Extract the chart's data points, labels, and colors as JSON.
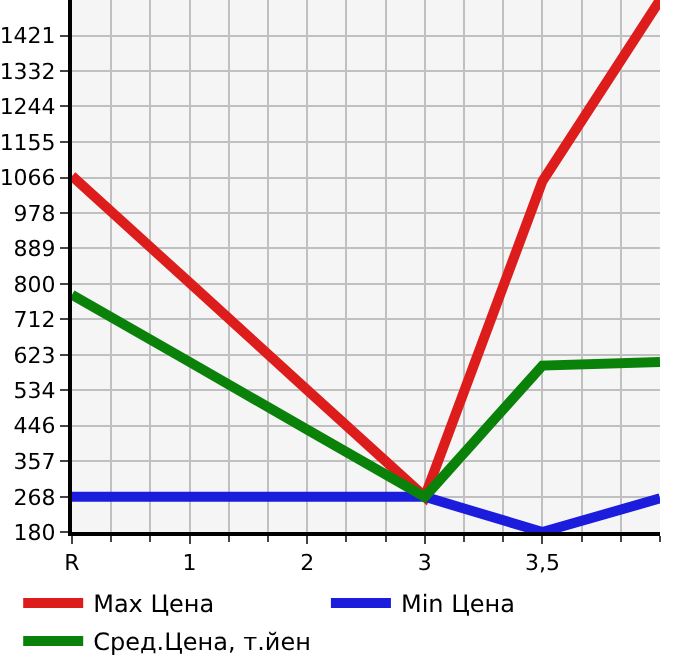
{
  "chart_data": {
    "type": "line",
    "categories": [
      "R",
      "1",
      "2",
      "3",
      "3,5",
      null
    ],
    "series": [
      {
        "name": "Max Цена",
        "color": "#dd1c1c",
        "values": [
          1070,
          803,
          535,
          268,
          1057,
          1510
        ]
      },
      {
        "name": "Min Цена",
        "color": "#1c1cdd",
        "values": [
          268,
          268,
          268,
          268,
          180,
          264
        ]
      },
      {
        "name": "Сред.Цена, т.йен",
        "color": "#0a820a",
        "values": [
          773,
          605,
          436,
          268,
          596,
          605
        ]
      }
    ],
    "ylim": [
      180,
      1510
    ],
    "yticks": [
      180,
      268,
      357,
      446,
      534,
      623,
      712,
      800,
      889,
      978,
      1066,
      1155,
      1244,
      1332,
      1421
    ],
    "grid": true,
    "legend": "bottom",
    "marker": "none",
    "line_style": "solid"
  }
}
